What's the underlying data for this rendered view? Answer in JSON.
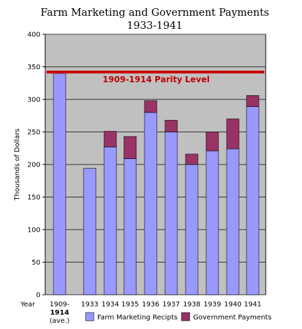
{
  "chart_data": {
    "type": "bar",
    "stacked": true,
    "title": "Farm Marketing and Government Payments",
    "subtitle": "1933-1941",
    "ylabel": "Thousands of Dollars",
    "xlabel": "Year",
    "ylim": [
      0,
      400
    ],
    "yticks": [
      0,
      50,
      100,
      150,
      200,
      250,
      300,
      350,
      400
    ],
    "grid": true,
    "legend_position": "bottom",
    "categories": [
      "1909-1914 (ave.)",
      "1933",
      "1934",
      "1935",
      "1936",
      "1937",
      "1938",
      "1939",
      "1940",
      "1941"
    ],
    "category_labels": [
      [
        "1909-",
        "1914",
        "(ave.)"
      ],
      [
        "1933"
      ],
      [
        "1934"
      ],
      [
        "1935"
      ],
      [
        "1936"
      ],
      [
        "1937"
      ],
      [
        "1938"
      ],
      [
        "1939"
      ],
      [
        "1940"
      ],
      [
        "1941"
      ]
    ],
    "series": [
      {
        "name": "Farm Marketing Recipts",
        "color": "#9999ff",
        "values": [
          340,
          194,
          227,
          209,
          280,
          250,
          200,
          221,
          224,
          289
        ]
      },
      {
        "name": "Government Payments",
        "color": "#993366",
        "values": [
          0,
          0,
          24,
          34,
          18,
          18,
          16,
          29,
          46,
          17
        ]
      }
    ],
    "reference_line": {
      "label": "1909-1914 Parity Level",
      "value": 342,
      "color": "#cc0000"
    },
    "plot_background": "#c0c0c0"
  }
}
